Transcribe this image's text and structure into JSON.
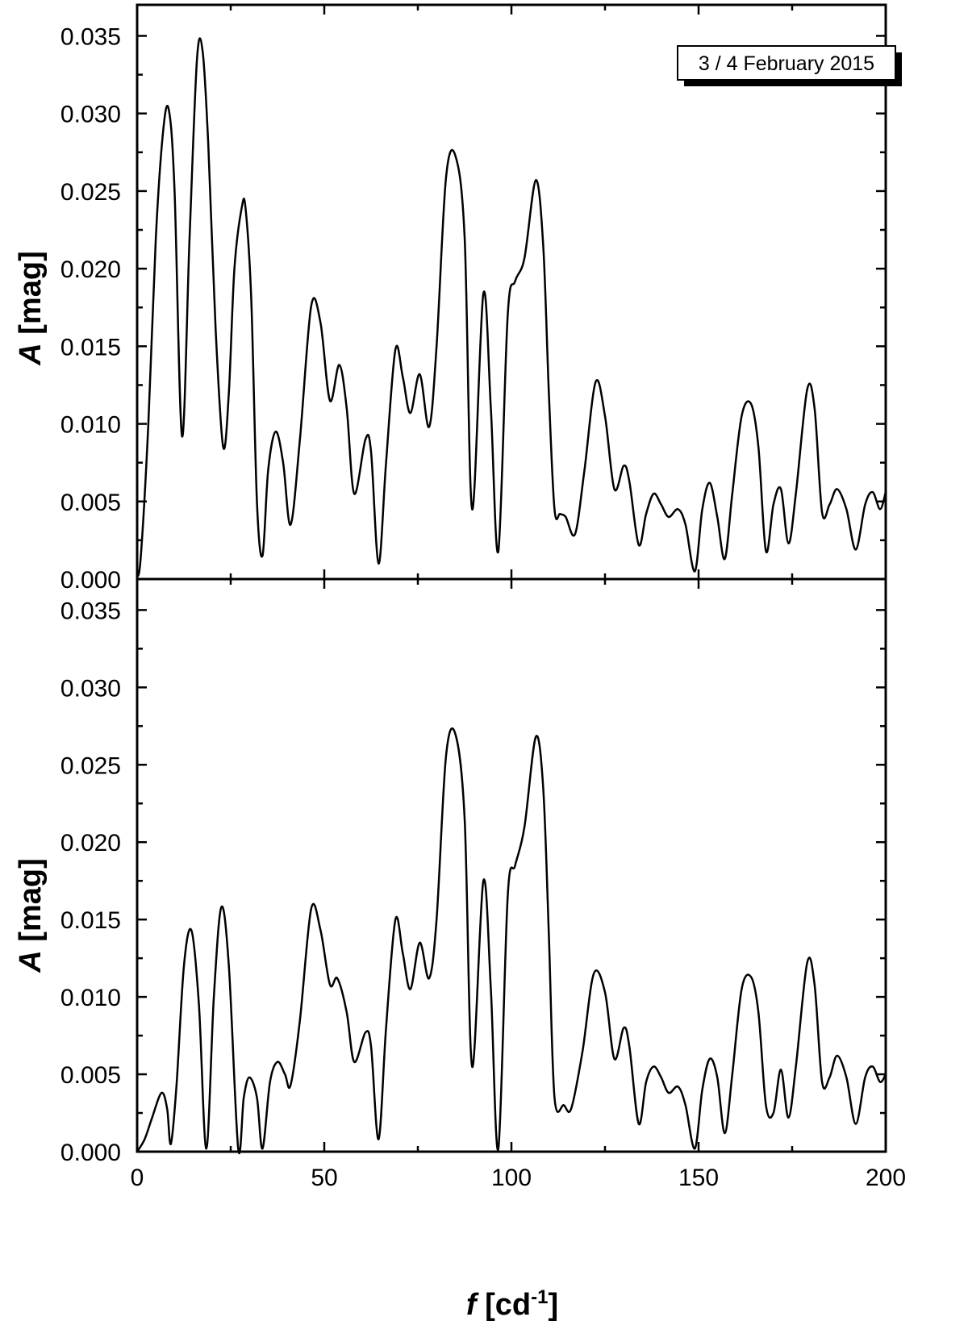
{
  "chart_data": [
    {
      "type": "line",
      "panel": "top",
      "annotation": "3 / 4 February 2015",
      "xlabel": "",
      "ylabel_italic": "A",
      "ylabel_rest": " [mag]",
      "xlim": [
        0,
        200
      ],
      "ylim": [
        0,
        0.037
      ],
      "y_ticks": [
        "0.000",
        "0.005",
        "0.010",
        "0.015",
        "0.020",
        "0.025",
        "0.030",
        "0.035"
      ],
      "x": [
        0,
        1,
        3,
        5,
        7,
        8.5,
        10,
        12,
        14,
        16,
        17.5,
        19,
        21,
        23,
        24.5,
        26,
        28,
        29,
        30.5,
        32,
        33.5,
        35,
        37,
        39,
        41,
        43.5,
        46.5,
        49,
        51.5,
        54,
        56,
        58,
        61,
        62.5,
        64.5,
        66.5,
        69,
        71,
        73,
        75.5,
        78,
        80,
        82.5,
        85,
        87.5,
        89.5,
        92.5,
        94.5,
        96.5,
        99,
        101,
        103.5,
        106.5,
        108.5,
        110,
        111.5,
        113,
        114.5,
        117,
        119.5,
        122.5,
        125,
        127.5,
        130,
        131.5,
        134,
        136,
        138,
        140,
        142,
        144.5,
        146.5,
        149,
        151,
        153,
        155,
        157,
        159,
        161.5,
        164,
        166,
        168,
        170,
        172,
        174,
        176,
        179,
        181,
        183,
        185,
        187,
        189.5,
        192,
        194.5,
        196.5,
        198.5,
        200
      ],
      "y": [
        0.0001,
        0.0015,
        0.01,
        0.022,
        0.029,
        0.0302,
        0.025,
        0.0092,
        0.022,
        0.0335,
        0.034,
        0.028,
        0.016,
        0.0085,
        0.012,
        0.02,
        0.024,
        0.0238,
        0.018,
        0.005,
        0.0015,
        0.007,
        0.0095,
        0.0075,
        0.0035,
        0.009,
        0.0176,
        0.0165,
        0.0115,
        0.0138,
        0.011,
        0.0055,
        0.009,
        0.0082,
        0.001,
        0.0075,
        0.0148,
        0.013,
        0.0107,
        0.0132,
        0.0098,
        0.015,
        0.0258,
        0.0273,
        0.022,
        0.0045,
        0.0184,
        0.011,
        0.0018,
        0.017,
        0.0192,
        0.0207,
        0.0257,
        0.0215,
        0.012,
        0.0045,
        0.0042,
        0.004,
        0.0029,
        0.007,
        0.0127,
        0.0105,
        0.0058,
        0.0073,
        0.0063,
        0.0022,
        0.0042,
        0.0055,
        0.0048,
        0.004,
        0.0045,
        0.0035,
        0.0005,
        0.0045,
        0.0062,
        0.004,
        0.0013,
        0.0055,
        0.0105,
        0.0113,
        0.0085,
        0.0018,
        0.0048,
        0.0058,
        0.0023,
        0.0055,
        0.0122,
        0.011,
        0.0043,
        0.0048,
        0.0058,
        0.0045,
        0.0019,
        0.0048,
        0.0056,
        0.0045,
        0.0056
      ]
    },
    {
      "type": "line",
      "panel": "bottom",
      "xlabel_italic": "f",
      "xlabel_rest": " [cd",
      "xlabel_sup": "-1",
      "xlabel_end": "]",
      "ylabel_italic": "A",
      "ylabel_rest": " [mag]",
      "xlim": [
        0,
        200
      ],
      "ylim": [
        0,
        0.037
      ],
      "x_ticks": [
        "0",
        "50",
        "100",
        "150",
        "200"
      ],
      "y_ticks": [
        "0.000",
        "0.005",
        "0.010",
        "0.015",
        "0.020",
        "0.025",
        "0.030",
        "0.035"
      ],
      "x": [
        0,
        2,
        4,
        6.5,
        8,
        9,
        10.5,
        12.5,
        14.5,
        16.5,
        18.5,
        20.5,
        22.5,
        24.5,
        27,
        28.5,
        30,
        32,
        33.5,
        35.5,
        37.5,
        39.5,
        41,
        43.5,
        46.5,
        49,
        51.5,
        53.5,
        56,
        58,
        61,
        62.5,
        64.5,
        66.5,
        69,
        71,
        73,
        75.5,
        78,
        80,
        82.5,
        85,
        87.5,
        89.5,
        92.5,
        94.5,
        96.5,
        99,
        101,
        103.5,
        106.5,
        108.5,
        110,
        111.5,
        114,
        116,
        119,
        122,
        125,
        127.5,
        130,
        131.5,
        134,
        136,
        138,
        140,
        142,
        144.5,
        146.5,
        149,
        151,
        153,
        155,
        157,
        159,
        161.5,
        164,
        166,
        168,
        170,
        172,
        174,
        176,
        179,
        181,
        183,
        185,
        187,
        189.5,
        192,
        194.5,
        196.5,
        198.5,
        200
      ],
      "y": [
        0,
        0.0008,
        0.0022,
        0.0038,
        0.0028,
        0.0005,
        0.0042,
        0.012,
        0.0143,
        0.0095,
        0.0002,
        0.01,
        0.0158,
        0.012,
        0.0002,
        0.0035,
        0.0048,
        0.0035,
        0.0002,
        0.0045,
        0.0058,
        0.005,
        0.0043,
        0.0085,
        0.0157,
        0.0143,
        0.0108,
        0.0112,
        0.009,
        0.0058,
        0.0077,
        0.0068,
        0.0008,
        0.008,
        0.015,
        0.0128,
        0.0105,
        0.0135,
        0.0112,
        0.015,
        0.0255,
        0.027,
        0.0215,
        0.0055,
        0.0175,
        0.0105,
        0.0002,
        0.0165,
        0.0185,
        0.021,
        0.0268,
        0.0235,
        0.014,
        0.0035,
        0.003,
        0.0028,
        0.0065,
        0.0115,
        0.0103,
        0.006,
        0.008,
        0.0068,
        0.0018,
        0.0045,
        0.0055,
        0.0048,
        0.0038,
        0.0042,
        0.003,
        0.0002,
        0.004,
        0.006,
        0.0048,
        0.0012,
        0.005,
        0.0105,
        0.0113,
        0.009,
        0.003,
        0.0025,
        0.0053,
        0.0022,
        0.0055,
        0.0122,
        0.0108,
        0.0045,
        0.0048,
        0.0062,
        0.0048,
        0.0018,
        0.0048,
        0.0055,
        0.0045,
        0.005
      ]
    }
  ]
}
